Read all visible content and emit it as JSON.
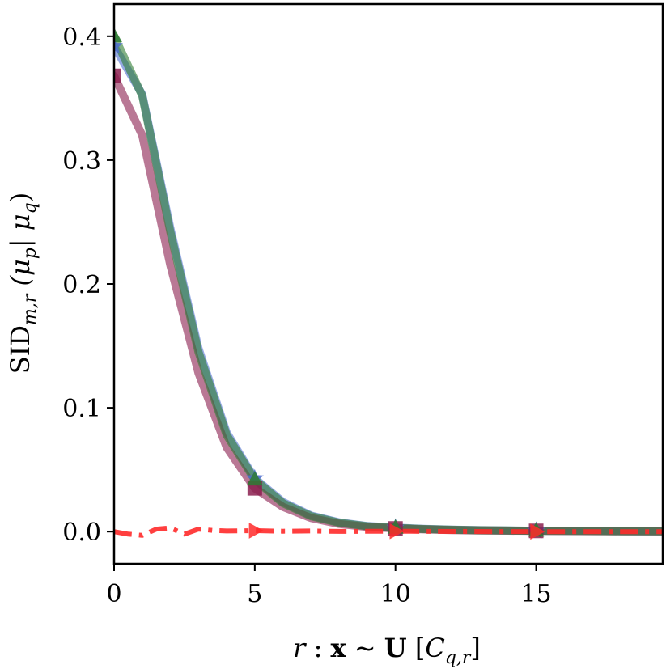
{
  "chart_data": {
    "type": "line",
    "title": "",
    "xlabel": "r : x ~ U [C_{q,r}]",
    "ylabel": "SID_{m,r} (μ_p | μ_q)",
    "xlim": [
      0,
      19.5
    ],
    "ylim": [
      -0.026,
      0.426
    ],
    "x_ticks": [
      0,
      5,
      10,
      15
    ],
    "y_ticks": [
      0.0,
      0.1,
      0.2,
      0.3,
      0.4
    ],
    "x_tick_labels": [
      "0",
      "5",
      "10",
      "15"
    ],
    "y_tick_labels": [
      "0.0",
      "0.1",
      "0.2",
      "0.3",
      "0.4"
    ],
    "grid": false,
    "series": [
      {
        "color": "#4f6fd0",
        "style": "solid",
        "marker": "star",
        "x": [
          0,
          1,
          2,
          3,
          4,
          5,
          6,
          7,
          8,
          9,
          10,
          11,
          12,
          13,
          14,
          15,
          16,
          17,
          18,
          19,
          19.5
        ],
        "y": [
          0.392,
          0.353,
          0.245,
          0.148,
          0.08,
          0.043,
          0.024,
          0.013,
          0.0075,
          0.0045,
          0.0032,
          0.0022,
          0.0016,
          0.0012,
          0.0009,
          0.0007,
          0.0006,
          0.0005,
          0.0004,
          0.0003,
          0.0003
        ],
        "marker_x": [
          0,
          5,
          10,
          15
        ]
      },
      {
        "color": "#8b1e4f",
        "style": "solid",
        "marker": "square",
        "x": [
          0,
          1,
          2,
          3,
          4,
          5,
          6,
          7,
          8,
          9,
          10,
          11,
          12,
          13,
          14,
          15,
          16,
          17,
          18,
          19,
          19.5
        ],
        "y": [
          0.368,
          0.32,
          0.215,
          0.128,
          0.068,
          0.035,
          0.02,
          0.011,
          0.0062,
          0.0038,
          0.0026,
          0.0018,
          0.0013,
          0.001,
          0.0008,
          0.0006,
          0.0005,
          0.0004,
          0.0003,
          0.0003,
          0.0002
        ],
        "marker_x": [
          0,
          5,
          10,
          15
        ]
      },
      {
        "color": "#2e7d32",
        "style": "solid",
        "marker": "triangle",
        "x": [
          0,
          1,
          2,
          3,
          4,
          5,
          6,
          7,
          8,
          9,
          10,
          11,
          12,
          13,
          14,
          15,
          16,
          17,
          18,
          19,
          19.5
        ],
        "y": [
          0.4,
          0.352,
          0.242,
          0.145,
          0.078,
          0.042,
          0.023,
          0.0125,
          0.0072,
          0.0043,
          0.003,
          0.0021,
          0.0015,
          0.0011,
          0.0009,
          0.0007,
          0.0006,
          0.0005,
          0.0004,
          0.0003,
          0.0003
        ],
        "marker_x": [
          0,
          5,
          10,
          15
        ]
      },
      {
        "color": "#ff2a2a",
        "style": "dashdot",
        "marker": "triangle-right",
        "x": [
          0,
          0.5,
          1,
          1.5,
          2,
          2.5,
          3,
          3.5,
          4,
          5,
          6,
          7,
          8,
          10,
          12,
          15,
          19.5
        ],
        "y": [
          0.0,
          -0.002,
          -0.003,
          0.002,
          0.003,
          -0.002,
          0.002,
          0.001,
          0.0005,
          0.0008,
          0.0003,
          0.0005,
          0.0002,
          0.0003,
          0.0001,
          0.0,
          0.0
        ],
        "marker_x": [
          5,
          10,
          15
        ]
      }
    ]
  }
}
